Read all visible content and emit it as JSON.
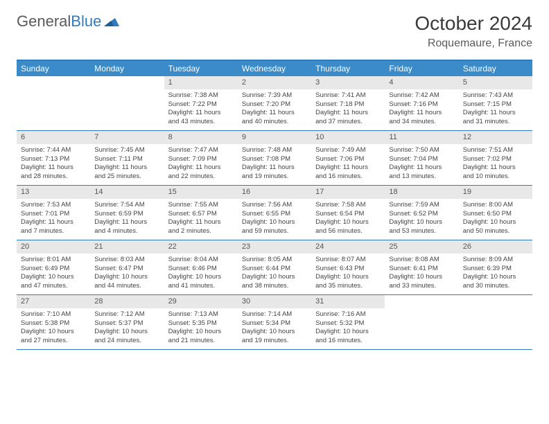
{
  "brand": {
    "part1": "General",
    "part2": "Blue"
  },
  "title": "October 2024",
  "location": "Roquemaure, France",
  "colors": {
    "header_bg": "#3b8bc9",
    "border": "#2f7bbf",
    "daynum_bg": "#e8e8e8",
    "text": "#444444"
  },
  "day_names": [
    "Sunday",
    "Monday",
    "Tuesday",
    "Wednesday",
    "Thursday",
    "Friday",
    "Saturday"
  ],
  "weeks": [
    [
      {
        "n": "",
        "sr": "",
        "ss": "",
        "dl": ""
      },
      {
        "n": "",
        "sr": "",
        "ss": "",
        "dl": ""
      },
      {
        "n": "1",
        "sr": "Sunrise: 7:38 AM",
        "ss": "Sunset: 7:22 PM",
        "dl": "Daylight: 11 hours and 43 minutes."
      },
      {
        "n": "2",
        "sr": "Sunrise: 7:39 AM",
        "ss": "Sunset: 7:20 PM",
        "dl": "Daylight: 11 hours and 40 minutes."
      },
      {
        "n": "3",
        "sr": "Sunrise: 7:41 AM",
        "ss": "Sunset: 7:18 PM",
        "dl": "Daylight: 11 hours and 37 minutes."
      },
      {
        "n": "4",
        "sr": "Sunrise: 7:42 AM",
        "ss": "Sunset: 7:16 PM",
        "dl": "Daylight: 11 hours and 34 minutes."
      },
      {
        "n": "5",
        "sr": "Sunrise: 7:43 AM",
        "ss": "Sunset: 7:15 PM",
        "dl": "Daylight: 11 hours and 31 minutes."
      }
    ],
    [
      {
        "n": "6",
        "sr": "Sunrise: 7:44 AM",
        "ss": "Sunset: 7:13 PM",
        "dl": "Daylight: 11 hours and 28 minutes."
      },
      {
        "n": "7",
        "sr": "Sunrise: 7:45 AM",
        "ss": "Sunset: 7:11 PM",
        "dl": "Daylight: 11 hours and 25 minutes."
      },
      {
        "n": "8",
        "sr": "Sunrise: 7:47 AM",
        "ss": "Sunset: 7:09 PM",
        "dl": "Daylight: 11 hours and 22 minutes."
      },
      {
        "n": "9",
        "sr": "Sunrise: 7:48 AM",
        "ss": "Sunset: 7:08 PM",
        "dl": "Daylight: 11 hours and 19 minutes."
      },
      {
        "n": "10",
        "sr": "Sunrise: 7:49 AM",
        "ss": "Sunset: 7:06 PM",
        "dl": "Daylight: 11 hours and 16 minutes."
      },
      {
        "n": "11",
        "sr": "Sunrise: 7:50 AM",
        "ss": "Sunset: 7:04 PM",
        "dl": "Daylight: 11 hours and 13 minutes."
      },
      {
        "n": "12",
        "sr": "Sunrise: 7:51 AM",
        "ss": "Sunset: 7:02 PM",
        "dl": "Daylight: 11 hours and 10 minutes."
      }
    ],
    [
      {
        "n": "13",
        "sr": "Sunrise: 7:53 AM",
        "ss": "Sunset: 7:01 PM",
        "dl": "Daylight: 11 hours and 7 minutes."
      },
      {
        "n": "14",
        "sr": "Sunrise: 7:54 AM",
        "ss": "Sunset: 6:59 PM",
        "dl": "Daylight: 11 hours and 4 minutes."
      },
      {
        "n": "15",
        "sr": "Sunrise: 7:55 AM",
        "ss": "Sunset: 6:57 PM",
        "dl": "Daylight: 11 hours and 2 minutes."
      },
      {
        "n": "16",
        "sr": "Sunrise: 7:56 AM",
        "ss": "Sunset: 6:55 PM",
        "dl": "Daylight: 10 hours and 59 minutes."
      },
      {
        "n": "17",
        "sr": "Sunrise: 7:58 AM",
        "ss": "Sunset: 6:54 PM",
        "dl": "Daylight: 10 hours and 56 minutes."
      },
      {
        "n": "18",
        "sr": "Sunrise: 7:59 AM",
        "ss": "Sunset: 6:52 PM",
        "dl": "Daylight: 10 hours and 53 minutes."
      },
      {
        "n": "19",
        "sr": "Sunrise: 8:00 AM",
        "ss": "Sunset: 6:50 PM",
        "dl": "Daylight: 10 hours and 50 minutes."
      }
    ],
    [
      {
        "n": "20",
        "sr": "Sunrise: 8:01 AM",
        "ss": "Sunset: 6:49 PM",
        "dl": "Daylight: 10 hours and 47 minutes."
      },
      {
        "n": "21",
        "sr": "Sunrise: 8:03 AM",
        "ss": "Sunset: 6:47 PM",
        "dl": "Daylight: 10 hours and 44 minutes."
      },
      {
        "n": "22",
        "sr": "Sunrise: 8:04 AM",
        "ss": "Sunset: 6:46 PM",
        "dl": "Daylight: 10 hours and 41 minutes."
      },
      {
        "n": "23",
        "sr": "Sunrise: 8:05 AM",
        "ss": "Sunset: 6:44 PM",
        "dl": "Daylight: 10 hours and 38 minutes."
      },
      {
        "n": "24",
        "sr": "Sunrise: 8:07 AM",
        "ss": "Sunset: 6:43 PM",
        "dl": "Daylight: 10 hours and 35 minutes."
      },
      {
        "n": "25",
        "sr": "Sunrise: 8:08 AM",
        "ss": "Sunset: 6:41 PM",
        "dl": "Daylight: 10 hours and 33 minutes."
      },
      {
        "n": "26",
        "sr": "Sunrise: 8:09 AM",
        "ss": "Sunset: 6:39 PM",
        "dl": "Daylight: 10 hours and 30 minutes."
      }
    ],
    [
      {
        "n": "27",
        "sr": "Sunrise: 7:10 AM",
        "ss": "Sunset: 5:38 PM",
        "dl": "Daylight: 10 hours and 27 minutes."
      },
      {
        "n": "28",
        "sr": "Sunrise: 7:12 AM",
        "ss": "Sunset: 5:37 PM",
        "dl": "Daylight: 10 hours and 24 minutes."
      },
      {
        "n": "29",
        "sr": "Sunrise: 7:13 AM",
        "ss": "Sunset: 5:35 PM",
        "dl": "Daylight: 10 hours and 21 minutes."
      },
      {
        "n": "30",
        "sr": "Sunrise: 7:14 AM",
        "ss": "Sunset: 5:34 PM",
        "dl": "Daylight: 10 hours and 19 minutes."
      },
      {
        "n": "31",
        "sr": "Sunrise: 7:16 AM",
        "ss": "Sunset: 5:32 PM",
        "dl": "Daylight: 10 hours and 16 minutes."
      },
      {
        "n": "",
        "sr": "",
        "ss": "",
        "dl": ""
      },
      {
        "n": "",
        "sr": "",
        "ss": "",
        "dl": ""
      }
    ]
  ]
}
